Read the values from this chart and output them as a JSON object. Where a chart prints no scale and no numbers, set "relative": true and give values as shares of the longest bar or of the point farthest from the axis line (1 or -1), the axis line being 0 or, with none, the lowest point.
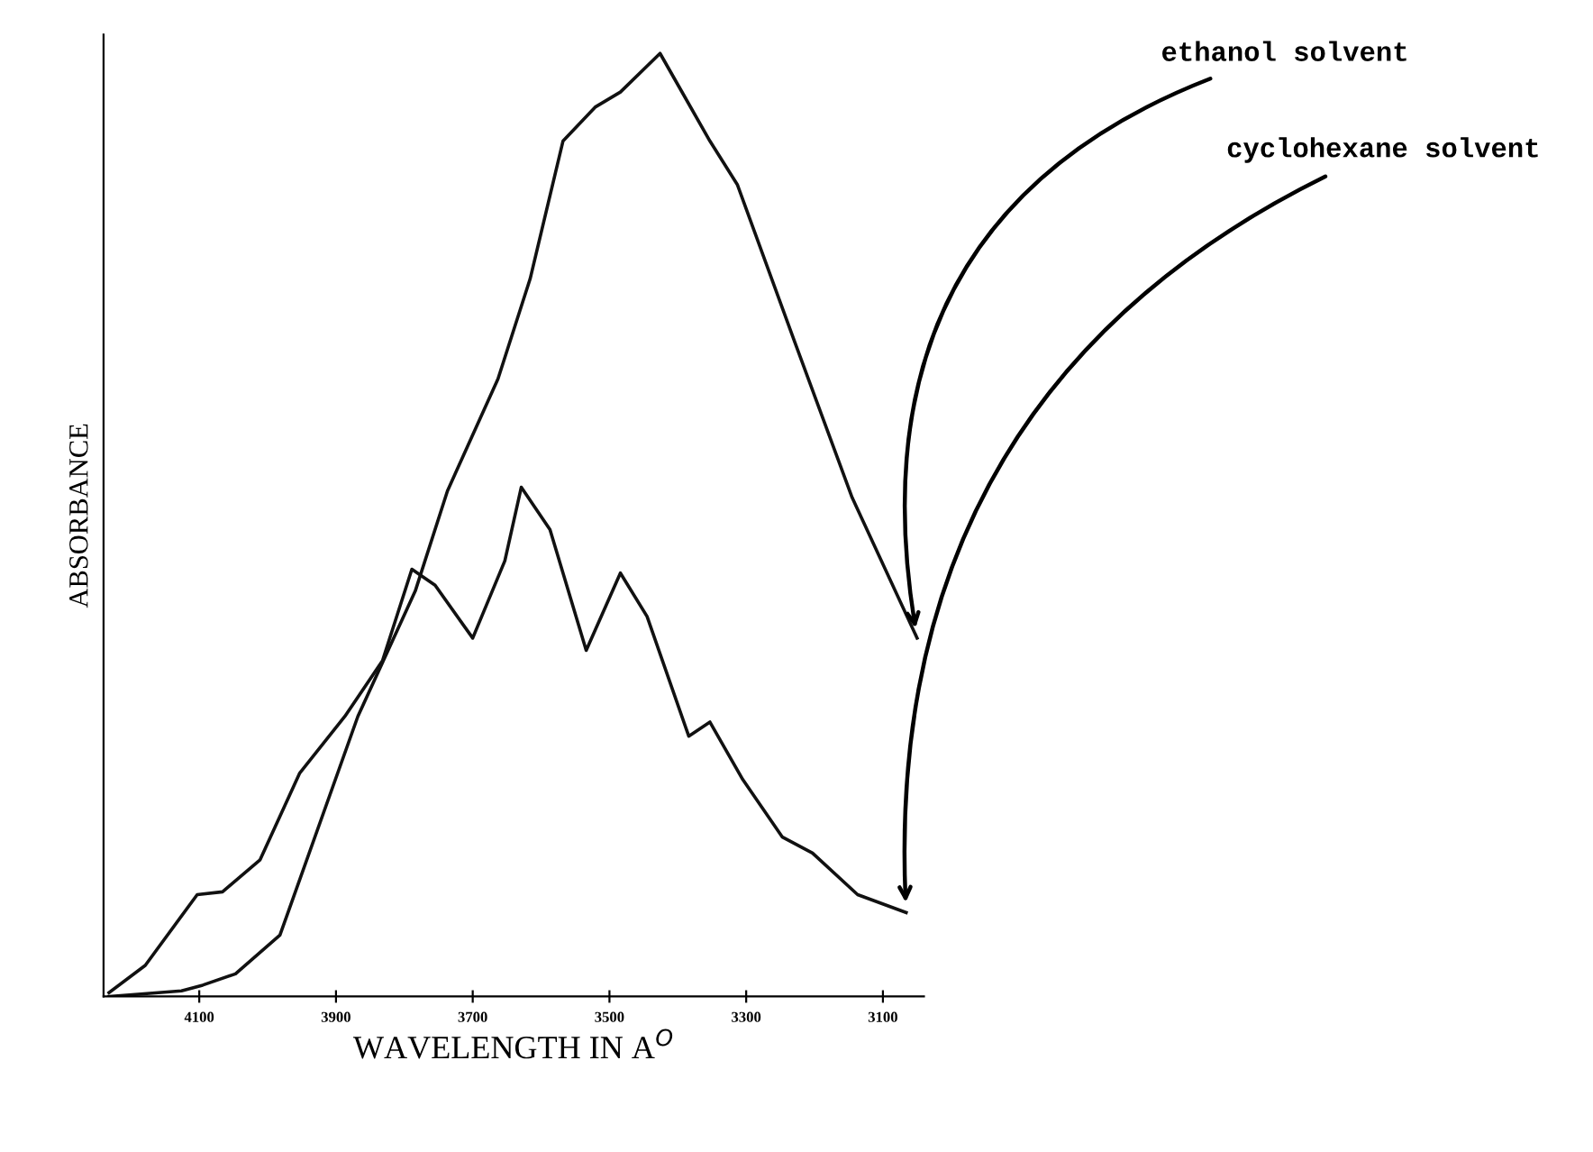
{
  "chart_data": {
    "type": "line",
    "relative": true,
    "xlabel": "WAVELENGTH IN A$^{O}$",
    "ylabel": "ABSORBANCE",
    "xlim": [
      4240,
      3040
    ],
    "xticks": [
      4100,
      3900,
      3700,
      3500,
      3300,
      3100
    ],
    "grid": false,
    "legend": false,
    "marker": "none",
    "line_style": "solid",
    "series": [
      {
        "color": "#111111",
        "x": [
          4232,
          4126,
          4095,
          4047,
          3982,
          3868,
          3784,
          3737,
          3663,
          3616,
          3568,
          3521,
          3484,
          3426,
          3353,
          3313,
          3229,
          3145,
          3050
        ],
        "values": [
          0.0,
          0.006,
          0.012,
          0.024,
          0.065,
          0.297,
          0.43,
          0.536,
          0.655,
          0.761,
          0.907,
          0.943,
          0.959,
          1.0,
          0.907,
          0.861,
          0.694,
          0.529,
          0.38
        ]
      },
      {
        "color": "#111111",
        "x": [
          4232,
          4179,
          4103,
          4066,
          4011,
          3953,
          3887,
          3832,
          3789,
          3755,
          3700,
          3653,
          3629,
          3587,
          3534,
          3484,
          3445,
          3384,
          3353,
          3305,
          3247,
          3203,
          3137,
          3066
        ],
        "values": [
          0.004,
          0.033,
          0.108,
          0.111,
          0.145,
          0.237,
          0.297,
          0.356,
          0.453,
          0.436,
          0.38,
          0.462,
          0.54,
          0.495,
          0.367,
          0.449,
          0.403,
          0.276,
          0.291,
          0.23,
          0.169,
          0.152,
          0.108,
          0.089
        ]
      }
    ],
    "annotations": [
      {
        "text": "ethanol solvent",
        "x": 3050,
        "y": 0.38
      },
      {
        "text": "cyclohexane solvent",
        "x": 3066,
        "y": 0.089
      }
    ]
  }
}
